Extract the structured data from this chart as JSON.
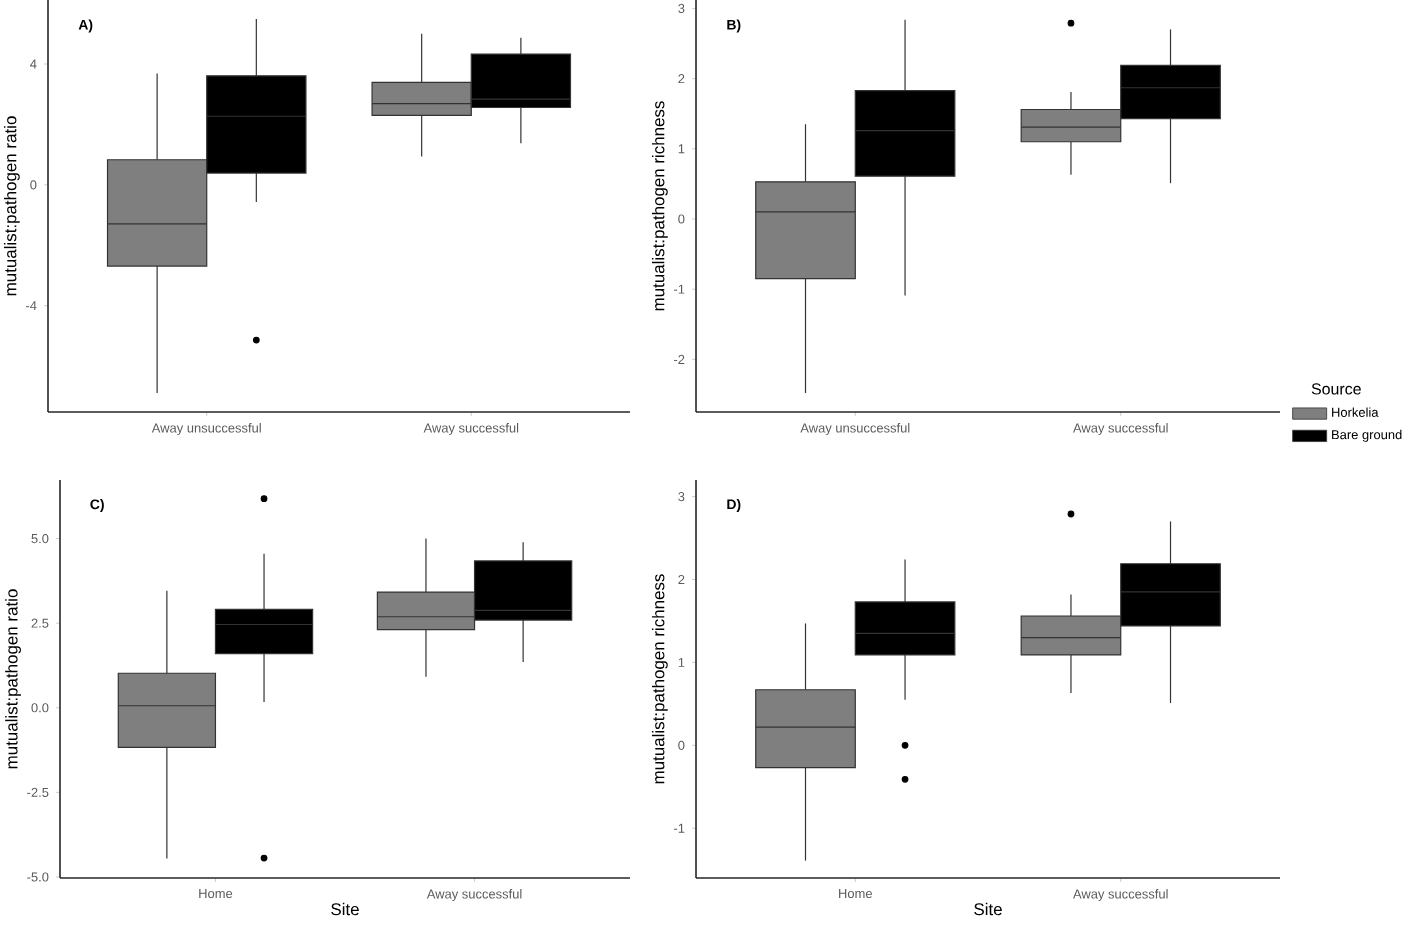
{
  "chart_data": [
    {
      "type": "box",
      "title": "A)",
      "ylabel": "mutualist:pathogen ratio",
      "categories": [
        "Away unsuccessful",
        "Away successful"
      ],
      "ylim": [
        -7.52,
        6.12
      ],
      "yticks": [
        -4,
        0,
        4
      ],
      "series": [
        {
          "color": "#7f7f7f",
          "boxes": [
            {
              "low": -6.89,
              "q1": -2.69,
              "median": -1.29,
              "q3": 0.83,
              "high": 3.69
            },
            {
              "low": 0.94,
              "q1": 2.3,
              "median": 2.69,
              "q3": 3.39,
              "high": 5.0
            }
          ]
        },
        {
          "color": "#000000",
          "boxes": [
            {
              "low": -0.57,
              "q1": 0.39,
              "median": 2.27,
              "q3": 3.61,
              "high": 5.49,
              "outliers": [
                -5.14
              ]
            },
            {
              "low": 1.38,
              "q1": 2.56,
              "median": 2.84,
              "q3": 4.33,
              "high": 4.87
            }
          ]
        }
      ]
    },
    {
      "type": "box",
      "title": "B)",
      "ylabel": "mutualist:pathogen richness",
      "categories": [
        "Away unsuccessful",
        "Away successful"
      ],
      "ylim": [
        -2.75,
        3.12
      ],
      "yticks": [
        -2,
        -1,
        0,
        1,
        2,
        3
      ],
      "legend": "right",
      "legend_title": "Source",
      "series": [
        {
          "name": "Horkelia",
          "color": "#7f7f7f",
          "boxes": [
            {
              "low": -2.48,
              "q1": -0.85,
              "median": 0.1,
              "q3": 0.53,
              "high": 1.35
            },
            {
              "low": 0.63,
              "q1": 1.1,
              "median": 1.31,
              "q3": 1.56,
              "high": 1.81,
              "outliers": [
                2.79
              ]
            }
          ]
        },
        {
          "name": "Bare ground",
          "color": "#000000",
          "boxes": [
            {
              "low": -1.09,
              "q1": 0.61,
              "median": 1.26,
              "q3": 1.83,
              "high": 2.84
            },
            {
              "low": 0.51,
              "q1": 1.43,
              "median": 1.87,
              "q3": 2.19,
              "high": 2.7
            }
          ]
        }
      ]
    },
    {
      "type": "box",
      "title": "C)",
      "xlabel": "Site",
      "ylabel": "mutualist:pathogen ratio",
      "categories": [
        "Home",
        "Away successful"
      ],
      "ylim": [
        -5.03,
        6.73
      ],
      "yticks": [
        {
          "value": -5,
          "label": "-5.0"
        },
        {
          "value": -2.5,
          "label": "-2.5"
        },
        {
          "value": 0,
          "label": "0.0"
        },
        {
          "value": 2.5,
          "label": "2.5"
        },
        {
          "value": 5,
          "label": "5.0"
        }
      ],
      "series": [
        {
          "color": "#7f7f7f",
          "boxes": [
            {
              "low": -4.45,
              "q1": -1.17,
              "median": 0.06,
              "q3": 1.02,
              "high": 3.46
            },
            {
              "low": 0.92,
              "q1": 2.31,
              "median": 2.69,
              "q3": 3.42,
              "high": 5.0
            }
          ]
        },
        {
          "color": "#000000",
          "boxes": [
            {
              "low": 0.17,
              "q1": 1.6,
              "median": 2.46,
              "q3": 2.91,
              "high": 4.55,
              "outliers": [
                6.18,
                -4.44
              ]
            },
            {
              "low": 1.35,
              "q1": 2.59,
              "median": 2.88,
              "q3": 4.34,
              "high": 4.89
            }
          ]
        }
      ]
    },
    {
      "type": "box",
      "title": "D)",
      "xlabel": "Site",
      "ylabel": "mutualist:pathogen richness",
      "categories": [
        "Home",
        "Away successful"
      ],
      "ylim": [
        -1.6,
        3.2
      ],
      "yticks": [
        -1,
        0,
        1,
        2,
        3
      ],
      "series": [
        {
          "color": "#7f7f7f",
          "boxes": [
            {
              "low": -1.39,
              "q1": -0.27,
              "median": 0.22,
              "q3": 0.67,
              "high": 1.47
            },
            {
              "low": 0.63,
              "q1": 1.09,
              "median": 1.3,
              "q3": 1.56,
              "high": 1.82,
              "outliers": [
                2.79
              ]
            }
          ]
        },
        {
          "color": "#000000",
          "boxes": [
            {
              "low": 0.55,
              "q1": 1.09,
              "median": 1.35,
              "q3": 1.73,
              "high": 2.24,
              "outliers": [
                0.0,
                -0.41
              ]
            },
            {
              "low": 0.51,
              "q1": 1.44,
              "median": 1.85,
              "q3": 2.19,
              "high": 2.7
            }
          ]
        }
      ]
    }
  ]
}
